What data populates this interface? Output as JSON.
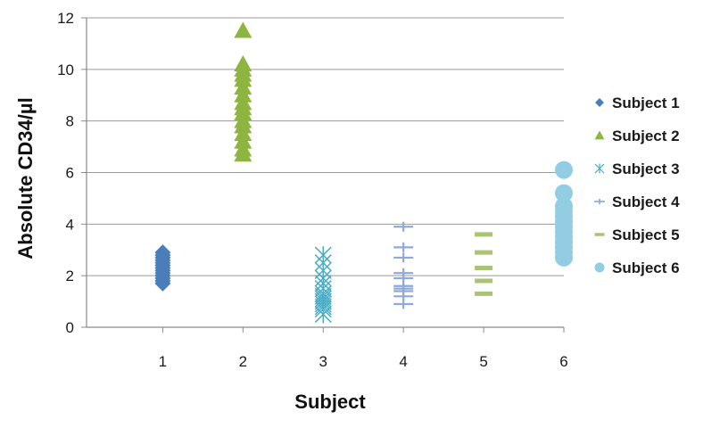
{
  "chart_data": {
    "type": "scatter",
    "title": "",
    "xlabel": "Subject",
    "ylabel": "Absolute  CD34/µl",
    "xlim": [
      0.05,
      6
    ],
    "ylim": [
      0,
      12
    ],
    "x_ticks": [
      1,
      2,
      3,
      4,
      5,
      6
    ],
    "y_ticks": [
      0,
      2,
      4,
      6,
      8,
      10,
      12
    ],
    "grid": "horizontal",
    "legend_position": "right",
    "series": [
      {
        "name": "Subject 1",
        "marker": "diamond",
        "color": "#4a7ebb",
        "x": 1,
        "values": [
          1.7,
          1.8,
          1.9,
          2.0,
          2.1,
          2.2,
          2.3,
          2.4,
          2.5,
          2.6,
          2.7,
          2.8,
          2.9
        ]
      },
      {
        "name": "Subject 2",
        "marker": "triangle",
        "color": "#8db53f",
        "x": 2,
        "values": [
          6.7,
          6.9,
          7.2,
          7.5,
          7.8,
          8.0,
          8.3,
          8.5,
          8.7,
          9.0,
          9.3,
          9.6,
          9.8,
          10.0,
          10.2,
          11.5
        ]
      },
      {
        "name": "Subject 3",
        "marker": "asterisk",
        "color": "#4bacc6",
        "x": 3,
        "values": [
          0.5,
          0.7,
          0.8,
          0.9,
          1.0,
          1.1,
          1.2,
          1.3,
          1.5,
          1.7,
          1.9,
          2.2,
          2.5,
          2.8
        ]
      },
      {
        "name": "Subject 4",
        "marker": "plus",
        "color": "#8eaadb",
        "x": 4,
        "values": [
          0.9,
          1.2,
          1.4,
          1.5,
          1.6,
          1.9,
          2.1,
          2.7,
          3.1,
          3.9
        ]
      },
      {
        "name": "Subject 5",
        "marker": "dash",
        "color": "#a9c574",
        "x": 5,
        "values": [
          1.3,
          1.8,
          2.3,
          2.9,
          3.6
        ]
      },
      {
        "name": "Subject 6",
        "marker": "circle",
        "color": "#93cde4",
        "x": 6,
        "values": [
          2.7,
          2.9,
          3.1,
          3.3,
          3.5,
          3.7,
          3.9,
          4.1,
          4.3,
          4.5,
          4.7,
          5.2,
          6.1
        ]
      }
    ]
  }
}
